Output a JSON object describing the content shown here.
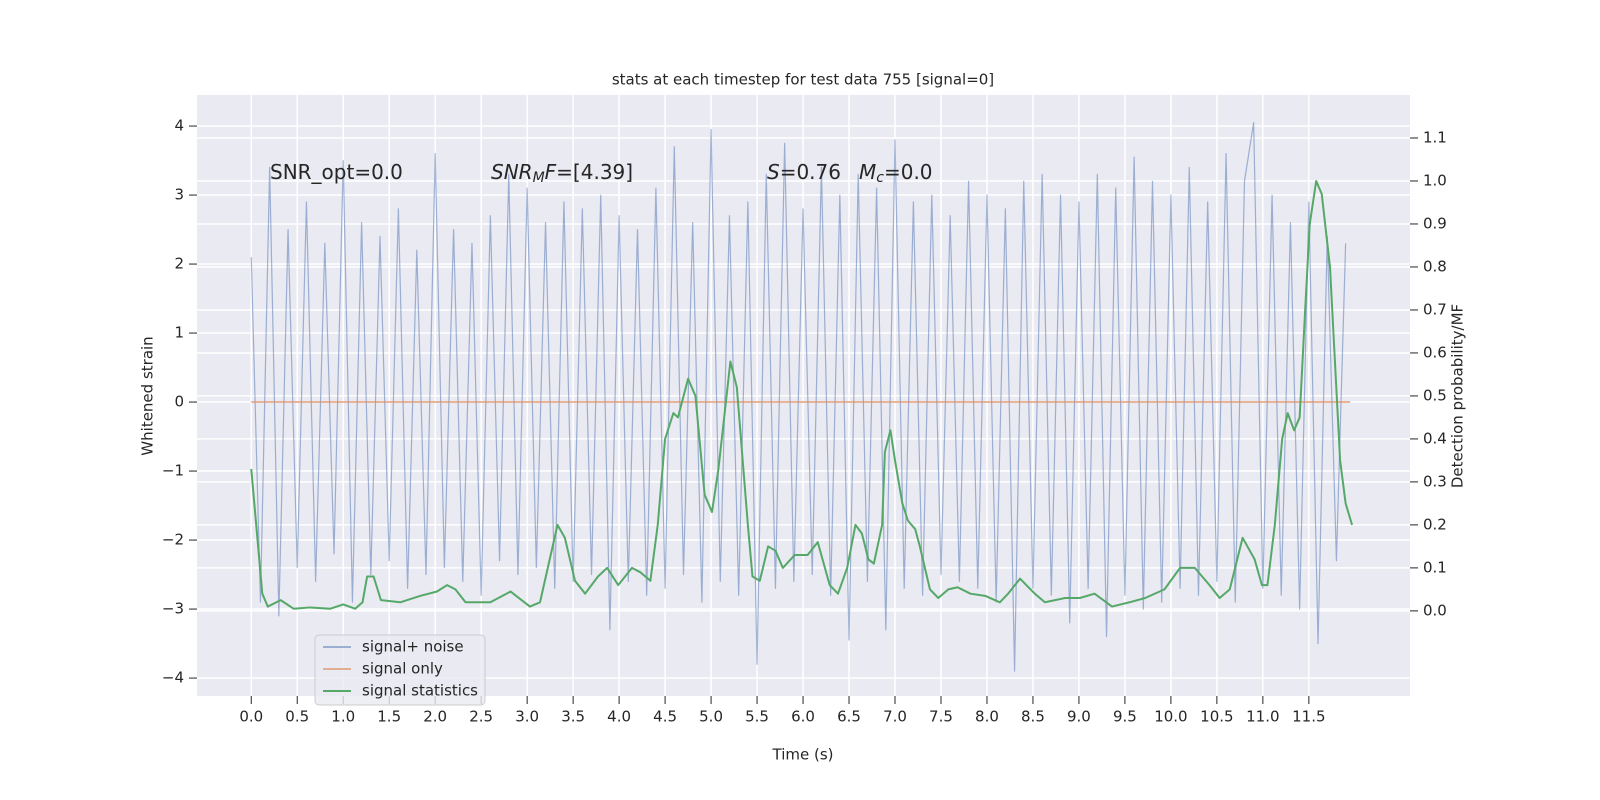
{
  "chart_data": {
    "type": "line",
    "title": "stats at each timestep for test data 755 [signal=0]",
    "x_label": "Time (s)",
    "y_label": "Whitened strain",
    "y2_label": "Detection probability/MF",
    "grid": true,
    "legend": "lower left",
    "xlim": [
      -0.59,
      12.6
    ],
    "ylim": [
      -4.26,
      4.45
    ],
    "y2lim": [
      -0.198,
      1.2
    ],
    "xticks": [
      {
        "value": 0,
        "label": "0.0"
      },
      0.5,
      {
        "value": 1,
        "label": "1.0"
      },
      1.5,
      {
        "value": 2,
        "label": "2.0"
      },
      2.5,
      {
        "value": 3,
        "label": "3.0"
      },
      3.5,
      {
        "value": 4,
        "label": "4.0"
      },
      4.5,
      {
        "value": 5,
        "label": "5.0"
      },
      5.5,
      {
        "value": 6,
        "label": "6.0"
      },
      6.5,
      {
        "value": 7,
        "label": "7.0"
      },
      7.5,
      {
        "value": 8,
        "label": "8.0"
      },
      8.5,
      {
        "value": 9,
        "label": "9.0"
      },
      9.5,
      {
        "value": 10,
        "label": "10.0"
      },
      10.5,
      {
        "value": 11,
        "label": "11.0"
      },
      11.5
    ],
    "yticks": [
      {
        "value": -4,
        "label": "−4"
      },
      {
        "value": -3,
        "label": "−3"
      },
      {
        "value": -2,
        "label": "−2"
      },
      {
        "value": -1,
        "label": "−1"
      },
      0,
      1,
      2,
      3,
      4
    ],
    "y2ticks": [
      {
        "value": 0,
        "label": "0.0"
      },
      0.1,
      0.2,
      0.3,
      0.4,
      0.5,
      0.6,
      0.7,
      0.8,
      0.9,
      {
        "value": 1,
        "label": "1.0"
      },
      1.1
    ],
    "annotations": [
      {
        "parts": [
          {
            "text": "SNR_opt=0.0",
            "style": "normal"
          }
        ]
      },
      {
        "parts": [
          {
            "text": "SNR",
            "style": "italic"
          },
          {
            "text": "M",
            "style": "sub"
          },
          {
            "text": "F",
            "style": "italic"
          },
          {
            "text": "=[4.39]",
            "style": "normal"
          }
        ]
      },
      {
        "parts": [
          {
            "text": "S",
            "style": "italic"
          },
          {
            "text": "=0.76",
            "style": "normal"
          }
        ]
      },
      {
        "parts": [
          {
            "text": "M",
            "style": "italic"
          },
          {
            "text": "c",
            "style": "sub"
          },
          {
            "text": "=0.0",
            "style": "normal"
          }
        ]
      }
    ],
    "series": [
      {
        "name": "signal+ noise",
        "color": "#4c72b0",
        "axis": "y",
        "x": [
          0.0,
          0.1,
          0.2,
          0.3,
          0.4,
          0.5,
          0.6,
          0.7,
          0.8,
          0.9,
          1.0,
          1.1,
          1.2,
          1.3,
          1.4,
          1.5,
          1.6,
          1.7,
          1.8,
          1.9,
          2.0,
          2.1,
          2.2,
          2.3,
          2.4,
          2.5,
          2.6,
          2.7,
          2.8,
          2.9,
          3.0,
          3.1,
          3.2,
          3.3,
          3.4,
          3.5,
          3.6,
          3.7,
          3.8,
          3.9,
          4.0,
          4.1,
          4.2,
          4.3,
          4.4,
          4.5,
          4.6,
          4.7,
          4.8,
          4.9,
          5.0,
          5.1,
          5.2,
          5.3,
          5.4,
          5.5,
          5.6,
          5.7,
          5.8,
          5.9,
          6.0,
          6.1,
          6.2,
          6.3,
          6.4,
          6.5,
          6.6,
          6.7,
          6.8,
          6.9,
          7.0,
          7.1,
          7.2,
          7.3,
          7.4,
          7.5,
          7.6,
          7.7,
          7.8,
          7.9,
          8.0,
          8.1,
          8.2,
          8.3,
          8.4,
          8.5,
          8.6,
          8.7,
          8.8,
          8.9,
          9.0,
          9.1,
          9.2,
          9.3,
          9.4,
          9.5,
          9.6,
          9.7,
          9.8,
          9.9,
          10.0,
          10.1,
          10.2,
          10.3,
          10.4,
          10.5,
          10.6,
          10.7,
          10.8,
          10.9,
          11.0,
          11.1,
          11.2,
          11.3,
          11.4,
          11.5,
          11.6,
          11.7,
          11.8,
          11.9
        ],
        "values": [
          2.1,
          -2.9,
          3.4,
          -3.1,
          2.5,
          -2.4,
          2.9,
          -2.6,
          2.3,
          -2.2,
          3.5,
          -2.9,
          2.6,
          -2.5,
          2.4,
          -2.3,
          2.8,
          -2.7,
          2.2,
          -2.5,
          3.6,
          -2.4,
          2.5,
          -2.6,
          2.3,
          -2.8,
          2.7,
          -2.3,
          3.3,
          -2.5,
          3.1,
          -2.4,
          2.6,
          -2.7,
          2.9,
          -2.6,
          2.8,
          -2.5,
          3.0,
          -3.3,
          2.7,
          -2.6,
          2.5,
          -2.8,
          3.1,
          -2.7,
          3.7,
          -2.5,
          2.6,
          -2.9,
          3.95,
          -2.6,
          2.7,
          -2.8,
          2.9,
          -3.8,
          3.3,
          -2.7,
          3.75,
          -2.6,
          2.8,
          -2.5,
          3.4,
          -2.8,
          3.0,
          -3.45,
          3.3,
          -2.6,
          3.1,
          -3.3,
          3.8,
          -2.7,
          2.9,
          -2.8,
          3.0,
          -2.5,
          2.7,
          -2.6,
          3.2,
          -2.7,
          3.0,
          -2.9,
          2.8,
          -3.9,
          3.2,
          -2.7,
          3.3,
          -2.8,
          3.0,
          -3.2,
          2.9,
          -2.7,
          3.3,
          -3.4,
          3.1,
          -2.8,
          3.55,
          -3.0,
          3.2,
          -2.9,
          3.0,
          -2.7,
          3.4,
          -2.8,
          2.9,
          -2.6,
          3.6,
          -2.9,
          3.2,
          4.05,
          -2.7,
          3.0,
          -2.8,
          2.6,
          -3.0,
          2.9,
          -3.5,
          2.4,
          -2.3,
          2.3
        ]
      },
      {
        "name": "signal only",
        "color": "#dd8452",
        "axis": "y",
        "x": [
          0.0,
          11.95
        ],
        "values": [
          0,
          0
        ]
      },
      {
        "name": "signal statistics",
        "color": "#55a868",
        "axis": "y2",
        "x": [
          0.0,
          0.12,
          0.18,
          0.32,
          0.46,
          0.64,
          0.86,
          1.0,
          1.13,
          1.21,
          1.26,
          1.33,
          1.41,
          1.62,
          1.84,
          2.02,
          2.13,
          2.22,
          2.33,
          2.6,
          2.82,
          3.03,
          3.14,
          3.33,
          3.41,
          3.52,
          3.63,
          3.77,
          3.87,
          3.99,
          4.14,
          4.23,
          4.34,
          4.42,
          4.5,
          4.59,
          4.64,
          4.75,
          4.83,
          4.93,
          5.01,
          5.08,
          5.21,
          5.28,
          5.4,
          5.45,
          5.53,
          5.62,
          5.7,
          5.78,
          5.91,
          6.05,
          6.16,
          6.29,
          6.38,
          6.48,
          6.57,
          6.64,
          6.71,
          6.77,
          6.86,
          6.89,
          6.95,
          7.0,
          7.08,
          7.14,
          7.22,
          7.27,
          7.38,
          7.47,
          7.58,
          7.68,
          7.82,
          7.98,
          8.14,
          8.23,
          8.36,
          8.52,
          8.63,
          8.85,
          9.01,
          9.17,
          9.36,
          9.55,
          9.72,
          9.93,
          10.1,
          10.26,
          10.42,
          10.53,
          10.64,
          10.78,
          10.91,
          10.99,
          11.05,
          11.13,
          11.21,
          11.27,
          11.34,
          11.4,
          11.46,
          11.51,
          11.58,
          11.64,
          11.73,
          11.84,
          11.9,
          11.97
        ],
        "values": [
          0.33,
          0.04,
          0.01,
          0.025,
          0.005,
          0.008,
          0.005,
          0.015,
          0.005,
          0.02,
          0.08,
          0.08,
          0.025,
          0.02,
          0.035,
          0.045,
          0.06,
          0.05,
          0.02,
          0.02,
          0.045,
          0.01,
          0.02,
          0.2,
          0.17,
          0.07,
          0.04,
          0.08,
          0.1,
          0.06,
          0.1,
          0.09,
          0.07,
          0.2,
          0.4,
          0.46,
          0.45,
          0.54,
          0.5,
          0.27,
          0.23,
          0.33,
          0.58,
          0.52,
          0.2,
          0.08,
          0.07,
          0.15,
          0.14,
          0.1,
          0.13,
          0.13,
          0.16,
          0.06,
          0.04,
          0.1,
          0.2,
          0.18,
          0.12,
          0.11,
          0.2,
          0.37,
          0.42,
          0.35,
          0.25,
          0.21,
          0.19,
          0.15,
          0.05,
          0.03,
          0.05,
          0.055,
          0.04,
          0.035,
          0.02,
          0.04,
          0.075,
          0.04,
          0.02,
          0.03,
          0.03,
          0.04,
          0.01,
          0.02,
          0.03,
          0.05,
          0.1,
          0.1,
          0.06,
          0.03,
          0.05,
          0.17,
          0.12,
          0.06,
          0.06,
          0.2,
          0.4,
          0.46,
          0.42,
          0.45,
          0.7,
          0.9,
          1.0,
          0.97,
          0.8,
          0.35,
          0.25,
          0.2
        ]
      }
    ]
  }
}
